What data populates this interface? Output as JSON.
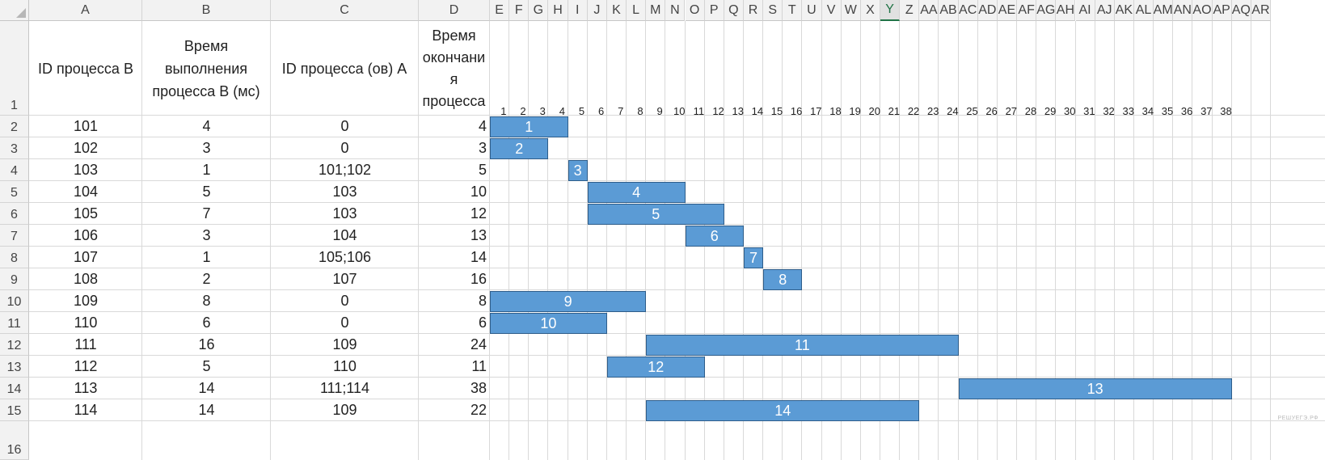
{
  "columns": [
    "A",
    "B",
    "C",
    "D",
    "E",
    "F",
    "G",
    "H",
    "I",
    "J",
    "K",
    "L",
    "M",
    "N",
    "O",
    "P",
    "Q",
    "R",
    "S",
    "T",
    "U",
    "V",
    "W",
    "X",
    "Y",
    "Z",
    "AA",
    "AB",
    "AC",
    "AD",
    "AE",
    "AF",
    "AG",
    "AH",
    "AI",
    "AJ",
    "AK",
    "AL",
    "AM",
    "AN",
    "AO",
    "AP",
    "AQ",
    "AR"
  ],
  "active_column": "Y",
  "rows": [
    "1",
    "2",
    "3",
    "4",
    "5",
    "6",
    "7",
    "8",
    "9",
    "10",
    "11",
    "12",
    "13",
    "14",
    "15",
    "16"
  ],
  "headers": {
    "id_b": "ID процесса B",
    "time_b": "Время\nвыполнения\nпроцесса B (мс)",
    "id_a": "ID процесса (ов) A",
    "end_time": "Время\nокончани\nя\nпроцесса"
  },
  "timeline_ticks": [
    "1",
    "2",
    "3",
    "4",
    "5",
    "6",
    "7",
    "8",
    "9",
    "10",
    "11",
    "12",
    "13",
    "14",
    "15",
    "16",
    "17",
    "18",
    "19",
    "20",
    "21",
    "22",
    "23",
    "24",
    "25",
    "26",
    "27",
    "28",
    "29",
    "30",
    "31",
    "32",
    "33",
    "34",
    "35",
    "36",
    "37",
    "38"
  ],
  "table": [
    {
      "id": "101",
      "time": "4",
      "deps": "0",
      "end": "4"
    },
    {
      "id": "102",
      "time": "3",
      "deps": "0",
      "end": "3"
    },
    {
      "id": "103",
      "time": "1",
      "deps": "101;102",
      "end": "5"
    },
    {
      "id": "104",
      "time": "5",
      "deps": "103",
      "end": "10"
    },
    {
      "id": "105",
      "time": "7",
      "deps": "103",
      "end": "12"
    },
    {
      "id": "106",
      "time": "3",
      "deps": "104",
      "end": "13"
    },
    {
      "id": "107",
      "time": "1",
      "deps": "105;106",
      "end": "14"
    },
    {
      "id": "108",
      "time": "2",
      "deps": "107",
      "end": "16"
    },
    {
      "id": "109",
      "time": "8",
      "deps": "0",
      "end": "8"
    },
    {
      "id": "110",
      "time": "6",
      "deps": "0",
      "end": "6"
    },
    {
      "id": "111",
      "time": "16",
      "deps": "109",
      "end": "24"
    },
    {
      "id": "112",
      "time": "5",
      "deps": "110",
      "end": "11"
    },
    {
      "id": "113",
      "time": "14",
      "deps": "111;114",
      "end": "38"
    },
    {
      "id": "114",
      "time": "14",
      "deps": "109",
      "end": "22"
    }
  ],
  "chart_data": {
    "type": "gantt",
    "bars": [
      {
        "label": "1",
        "start": 0,
        "end": 4
      },
      {
        "label": "2",
        "start": 0,
        "end": 3
      },
      {
        "label": "3",
        "start": 4,
        "end": 5
      },
      {
        "label": "4",
        "start": 5,
        "end": 10
      },
      {
        "label": "5",
        "start": 5,
        "end": 12
      },
      {
        "label": "6",
        "start": 10,
        "end": 13
      },
      {
        "label": "7",
        "start": 13,
        "end": 14
      },
      {
        "label": "8",
        "start": 14,
        "end": 16
      },
      {
        "label": "9",
        "start": 0,
        "end": 8
      },
      {
        "label": "10",
        "start": 0,
        "end": 6
      },
      {
        "label": "11",
        "start": 8,
        "end": 24
      },
      {
        "label": "12",
        "start": 6,
        "end": 11
      },
      {
        "label": "13",
        "start": 24,
        "end": 38
      },
      {
        "label": "14",
        "start": 8,
        "end": 22
      }
    ],
    "bar_color": "#5b9bd5",
    "bar_border": "#2e5d8a"
  },
  "watermark": "РЕШУЕГЭ.РФ"
}
